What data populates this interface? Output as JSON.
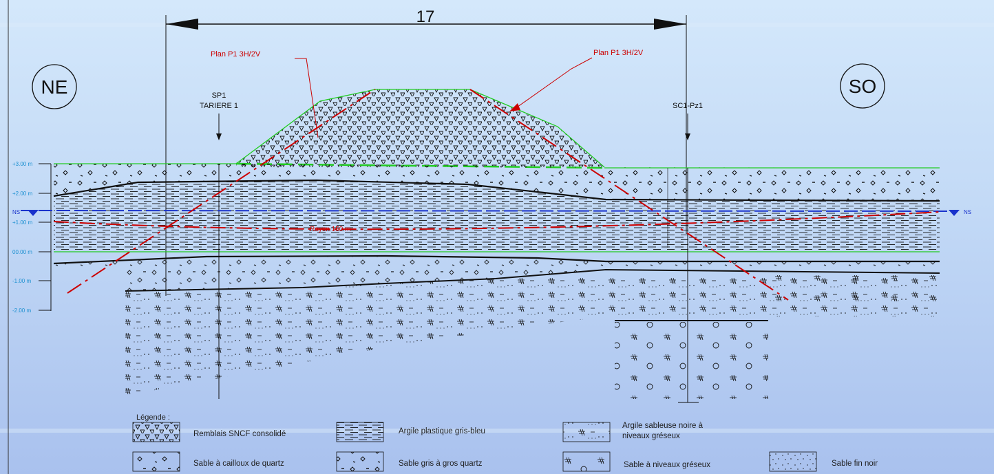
{
  "header": {
    "dimension_label": "17"
  },
  "orientation": {
    "left": "NE",
    "right": "SO"
  },
  "boreholes": [
    {
      "name": "SP1",
      "sub": "TARIERE 1"
    },
    {
      "name": "SC1-Pz1",
      "sub": ""
    }
  ],
  "annotations": {
    "plan_left": "Plan P1 3H/2V",
    "plan_right": "Plan P1 3H/2V",
    "rayon": "Rayon 150 m",
    "ns_left": "NS",
    "ns_right": "NS"
  },
  "elevations": [
    "+3.00 m",
    "+2.00 m",
    "+1.00 m",
    "00.00 m",
    "-1.00 m",
    "-2.00 m"
  ],
  "legend": {
    "title": "Légende :",
    "items": [
      {
        "label": "Remblais SNCF consolidé",
        "pattern": "triangles"
      },
      {
        "label": "Argile plastique gris-bleu",
        "pattern": "dashes"
      },
      {
        "label": "Argile sableuse noire à niveaux gréseux",
        "pattern": "hash-dots"
      },
      {
        "label": "Sable à cailloux de quartz",
        "pattern": "pebbles"
      },
      {
        "label": "Sable gris à gros quartz",
        "pattern": "quartz"
      },
      {
        "label": "Sable à niveaux gréseux",
        "pattern": "hash-circles"
      },
      {
        "label": "Sable fin noir",
        "pattern": "fine-dots"
      }
    ]
  },
  "colors": {
    "section_line": "#cc0000",
    "water_line": "#1a33cc",
    "contour_green": "#22cc22",
    "axis_cyan": "#1a8fd0",
    "ink": "#111111"
  }
}
